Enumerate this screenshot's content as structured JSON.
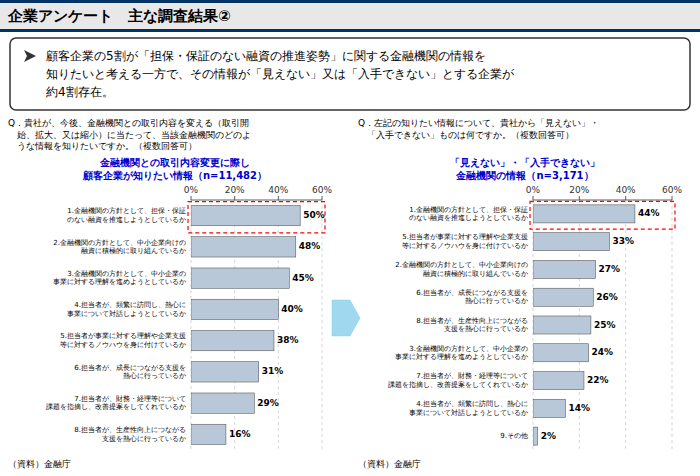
{
  "title": "企業アンケート　主な調査結果②",
  "summary": "顧客企業の5割が「担保・保証のない融資の推進姿勢」に関する金融機関の情報を\n知りたいと考える一方で、その情報が「見えない」又は「入手できない」とする企業が\n約4割存在。",
  "chart_data": [
    {
      "type": "bar",
      "orientation": "horizontal",
      "title": "金融機関との取引内容変更に際し\n顧客企業が知りたい情報（n=11,482）",
      "subtitle": "Q．貴社が、今後、金融機関との取引内容を変える（取引開\n　始、拡大、又は縮小）に当たって、当該金融機関のどのよ\n　うな情報を知りたいですか。（複数回答可）",
      "categories": [
        "1.金融機関の方針として、担保・保証\nのない融資を推進しようとしているか",
        "2.金融機関の方針として、中小企業向けの\n融資に積極的に取り組んでいるか",
        "3.金融機関の方針として、中小企業の\n事業に対する理解を進めようとしているか",
        "4.担当者が、頻繁に訪問し、熱心に\n事業について対話しようとしているか",
        "5.担当者が事業に対する理解や企業支援\n等に対するノウハウを身に付けているか",
        "6.担当者が、成長につながる支援を\n熱心に行っているか",
        "7.担当者が、財務・経理等について\n課題を指摘し、改善提案をしてくれているか",
        "8.担当者が、生産性向上につながる\n支援を熱心に行っているか"
      ],
      "values": [
        50,
        48,
        45,
        40,
        38,
        31,
        29,
        16
      ],
      "value_labels": [
        "50%",
        "48%",
        "45%",
        "40%",
        "38%",
        "31%",
        "29%",
        "16%"
      ],
      "data_labels": true,
      "color": "#b8c8d8",
      "xlim": [
        0,
        60
      ],
      "xticks": [
        {
          "value": 0,
          "label": "0%"
        },
        {
          "value": 20,
          "label": "20%"
        },
        {
          "value": 40,
          "label": "40%"
        },
        {
          "value": 60,
          "label": "60%"
        }
      ],
      "grid": true,
      "annotations": [
        "（資料）金融庁"
      ]
    },
    {
      "type": "bar",
      "orientation": "horizontal",
      "title": "「見えない」・「入手できない」\n金融機関の情報（n=3,171）",
      "subtitle": "Q．左記の知りたい情報について、貴社から「見えない」・\n　「入手できない」ものは何ですか。（複数回答可）",
      "categories": [
        "1.金融機関の方針として、担保・保証\nのない融資を推進しようとしているか",
        "5.担当者が事業に対する理解や企業支援\n等に対するノウハウを身に付けているか",
        "2.金融機関の方針として、中小企業向けの\n融資に積極的に取り組んでいるか",
        "6.担当者が、成長につながる支援を\n熱心に行っているか",
        "8.担当者が、生産性向上につながる\n支援を熱心に行っているか",
        "3.金融機関の方針として、中小企業の\n事業に対する理解を進めようとしているか",
        "7.担当者が、財務・経理等について\n課題を指摘し、改善提案をしてくれているか",
        "4.担当者が、頻繁に訪問し、熱心に\n事業について対話しようとしているか",
        "9.その他"
      ],
      "values": [
        44,
        33,
        27,
        26,
        25,
        24,
        22,
        14,
        2
      ],
      "value_labels": [
        "44%",
        "33%",
        "27%",
        "26%",
        "25%",
        "24%",
        "22%",
        "14%",
        "2%"
      ],
      "data_labels": true,
      "color": "#b8c8d8",
      "xlim": [
        0,
        60
      ],
      "xticks": [
        {
          "value": 0,
          "label": "0%"
        },
        {
          "value": 20,
          "label": "20%"
        },
        {
          "value": 40,
          "label": "40%"
        },
        {
          "value": 60,
          "label": "60%"
        }
      ],
      "grid": true,
      "annotations": [
        "（資料）金融庁"
      ]
    }
  ]
}
